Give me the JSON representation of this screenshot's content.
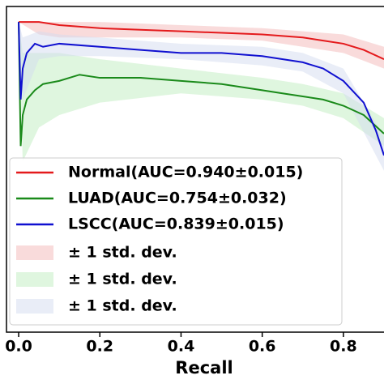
{
  "chart_data": {
    "type": "line",
    "xlabel": "Recall",
    "xlim": [
      -0.03,
      0.9
    ],
    "ylim": [
      0.0,
      1.05
    ],
    "xticks": [
      {
        "value": 0,
        "label": "0.0"
      },
      0.2,
      0.4,
      0.6,
      0.8
    ],
    "series": [
      {
        "name": "Normal(AUC=0.940±0.015)",
        "color": "#e41a1c",
        "x": [
          0,
          0.005,
          0.02,
          0.05,
          0.1,
          0.2,
          0.3,
          0.4,
          0.5,
          0.6,
          0.65,
          0.7,
          0.75,
          0.8,
          0.85,
          0.9
        ],
        "values": [
          1.0,
          1.0,
          1.0,
          1.0,
          0.99,
          0.98,
          0.975,
          0.97,
          0.965,
          0.96,
          0.955,
          0.95,
          0.94,
          0.93,
          0.91,
          0.88
        ]
      },
      {
        "name": "LUAD(AUC=0.754±0.032)",
        "color": "#1a8a1a",
        "x": [
          0,
          0.005,
          0.01,
          0.02,
          0.04,
          0.06,
          0.1,
          0.15,
          0.2,
          0.3,
          0.4,
          0.5,
          0.6,
          0.65,
          0.7,
          0.75,
          0.8,
          0.85,
          0.9
        ],
        "values": [
          1.0,
          0.6,
          0.7,
          0.75,
          0.78,
          0.8,
          0.81,
          0.83,
          0.82,
          0.82,
          0.81,
          0.8,
          0.78,
          0.77,
          0.76,
          0.75,
          0.73,
          0.7,
          0.64
        ]
      },
      {
        "name": "LSCC(AUC=0.839±0.015)",
        "color": "#1010d0",
        "x": [
          0,
          0.005,
          0.01,
          0.02,
          0.04,
          0.06,
          0.1,
          0.2,
          0.3,
          0.4,
          0.5,
          0.6,
          0.7,
          0.75,
          0.8,
          0.85,
          0.88,
          0.9
        ],
        "values": [
          1.0,
          0.75,
          0.85,
          0.9,
          0.93,
          0.92,
          0.93,
          0.92,
          0.91,
          0.9,
          0.9,
          0.89,
          0.87,
          0.85,
          0.81,
          0.74,
          0.65,
          0.57
        ]
      }
    ],
    "bands": [
      {
        "name": "± 1 std. dev.",
        "color": "#f4b8b8",
        "x": [
          0,
          0.05,
          0.1,
          0.2,
          0.4,
          0.6,
          0.7,
          0.8,
          0.9
        ],
        "lower": [
          1.0,
          0.96,
          0.95,
          0.95,
          0.95,
          0.94,
          0.92,
          0.9,
          0.85
        ],
        "upper": [
          1.0,
          1.0,
          1.0,
          1.0,
          0.99,
          0.98,
          0.97,
          0.96,
          0.92
        ]
      },
      {
        "name": "± 1 std. dev.",
        "color": "#bfeebf",
        "x": [
          0,
          0.01,
          0.05,
          0.1,
          0.2,
          0.4,
          0.6,
          0.7,
          0.8,
          0.9
        ],
        "lower": [
          1.0,
          0.55,
          0.66,
          0.7,
          0.74,
          0.77,
          0.75,
          0.73,
          0.69,
          0.6
        ],
        "upper": [
          1.0,
          0.9,
          0.9,
          0.9,
          0.88,
          0.85,
          0.82,
          0.8,
          0.77,
          0.69
        ]
      },
      {
        "name": "± 1 std. dev.",
        "color": "#d4dcf0",
        "x": [
          0,
          0.01,
          0.05,
          0.1,
          0.2,
          0.4,
          0.6,
          0.7,
          0.8,
          0.9
        ],
        "lower": [
          1.0,
          0.75,
          0.88,
          0.89,
          0.89,
          0.88,
          0.86,
          0.84,
          0.77,
          0.52
        ],
        "upper": [
          1.0,
          0.95,
          0.97,
          0.96,
          0.95,
          0.93,
          0.92,
          0.9,
          0.85,
          0.63
        ]
      }
    ]
  }
}
